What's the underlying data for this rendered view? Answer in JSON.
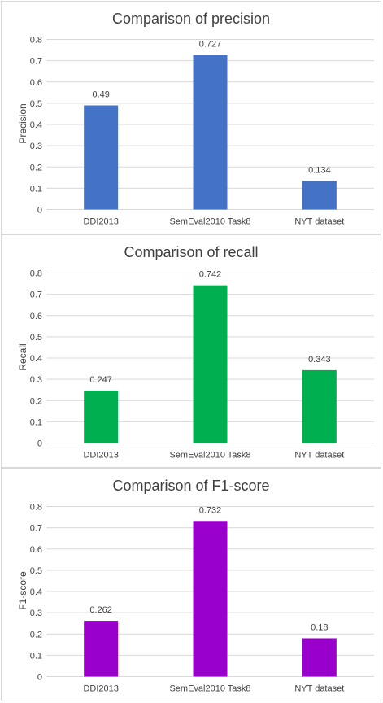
{
  "chart_data": [
    {
      "type": "bar",
      "title": "Comparison of precision",
      "xlabel": "",
      "ylabel": "Precision",
      "categories": [
        "DDI2013",
        "SemEval2010 Task8",
        "NYT dataset"
      ],
      "values": [
        0.49,
        0.727,
        0.134
      ],
      "data_labels": [
        "0.49",
        "0.727",
        "0.134"
      ],
      "ylim": [
        0,
        0.8
      ],
      "yticks": [
        "0",
        "0.1",
        "0.2",
        "0.3",
        "0.4",
        "0.5",
        "0.6",
        "0.7",
        "0.8"
      ],
      "color": "#4472c4",
      "grid": true,
      "legend": "none"
    },
    {
      "type": "bar",
      "title": "Comparison of recall",
      "xlabel": "",
      "ylabel": "Recall",
      "categories": [
        "DDI2013",
        "SemEval2010 Task8",
        "NYT dataset"
      ],
      "values": [
        0.247,
        0.742,
        0.343
      ],
      "data_labels": [
        "0.247",
        "0.742",
        "0.343"
      ],
      "ylim": [
        0,
        0.8
      ],
      "yticks": [
        "0",
        "0.1",
        "0.2",
        "0.3",
        "0.4",
        "0.5",
        "0.6",
        "0.7",
        "0.8"
      ],
      "color": "#00b050",
      "grid": true,
      "legend": "none"
    },
    {
      "type": "bar",
      "title": "Comparison of F1-score",
      "xlabel": "",
      "ylabel": "F1-score",
      "categories": [
        "DDI2013",
        "SemEval2010 Task8",
        "NYT dataset"
      ],
      "values": [
        0.262,
        0.732,
        0.18
      ],
      "data_labels": [
        "0.262",
        "0.732",
        "0.18"
      ],
      "ylim": [
        0,
        0.8
      ],
      "yticks": [
        "0",
        "0.1",
        "0.2",
        "0.3",
        "0.4",
        "0.5",
        "0.6",
        "0.7",
        "0.8"
      ],
      "color": "#9900cc",
      "grid": true,
      "legend": "none"
    }
  ]
}
